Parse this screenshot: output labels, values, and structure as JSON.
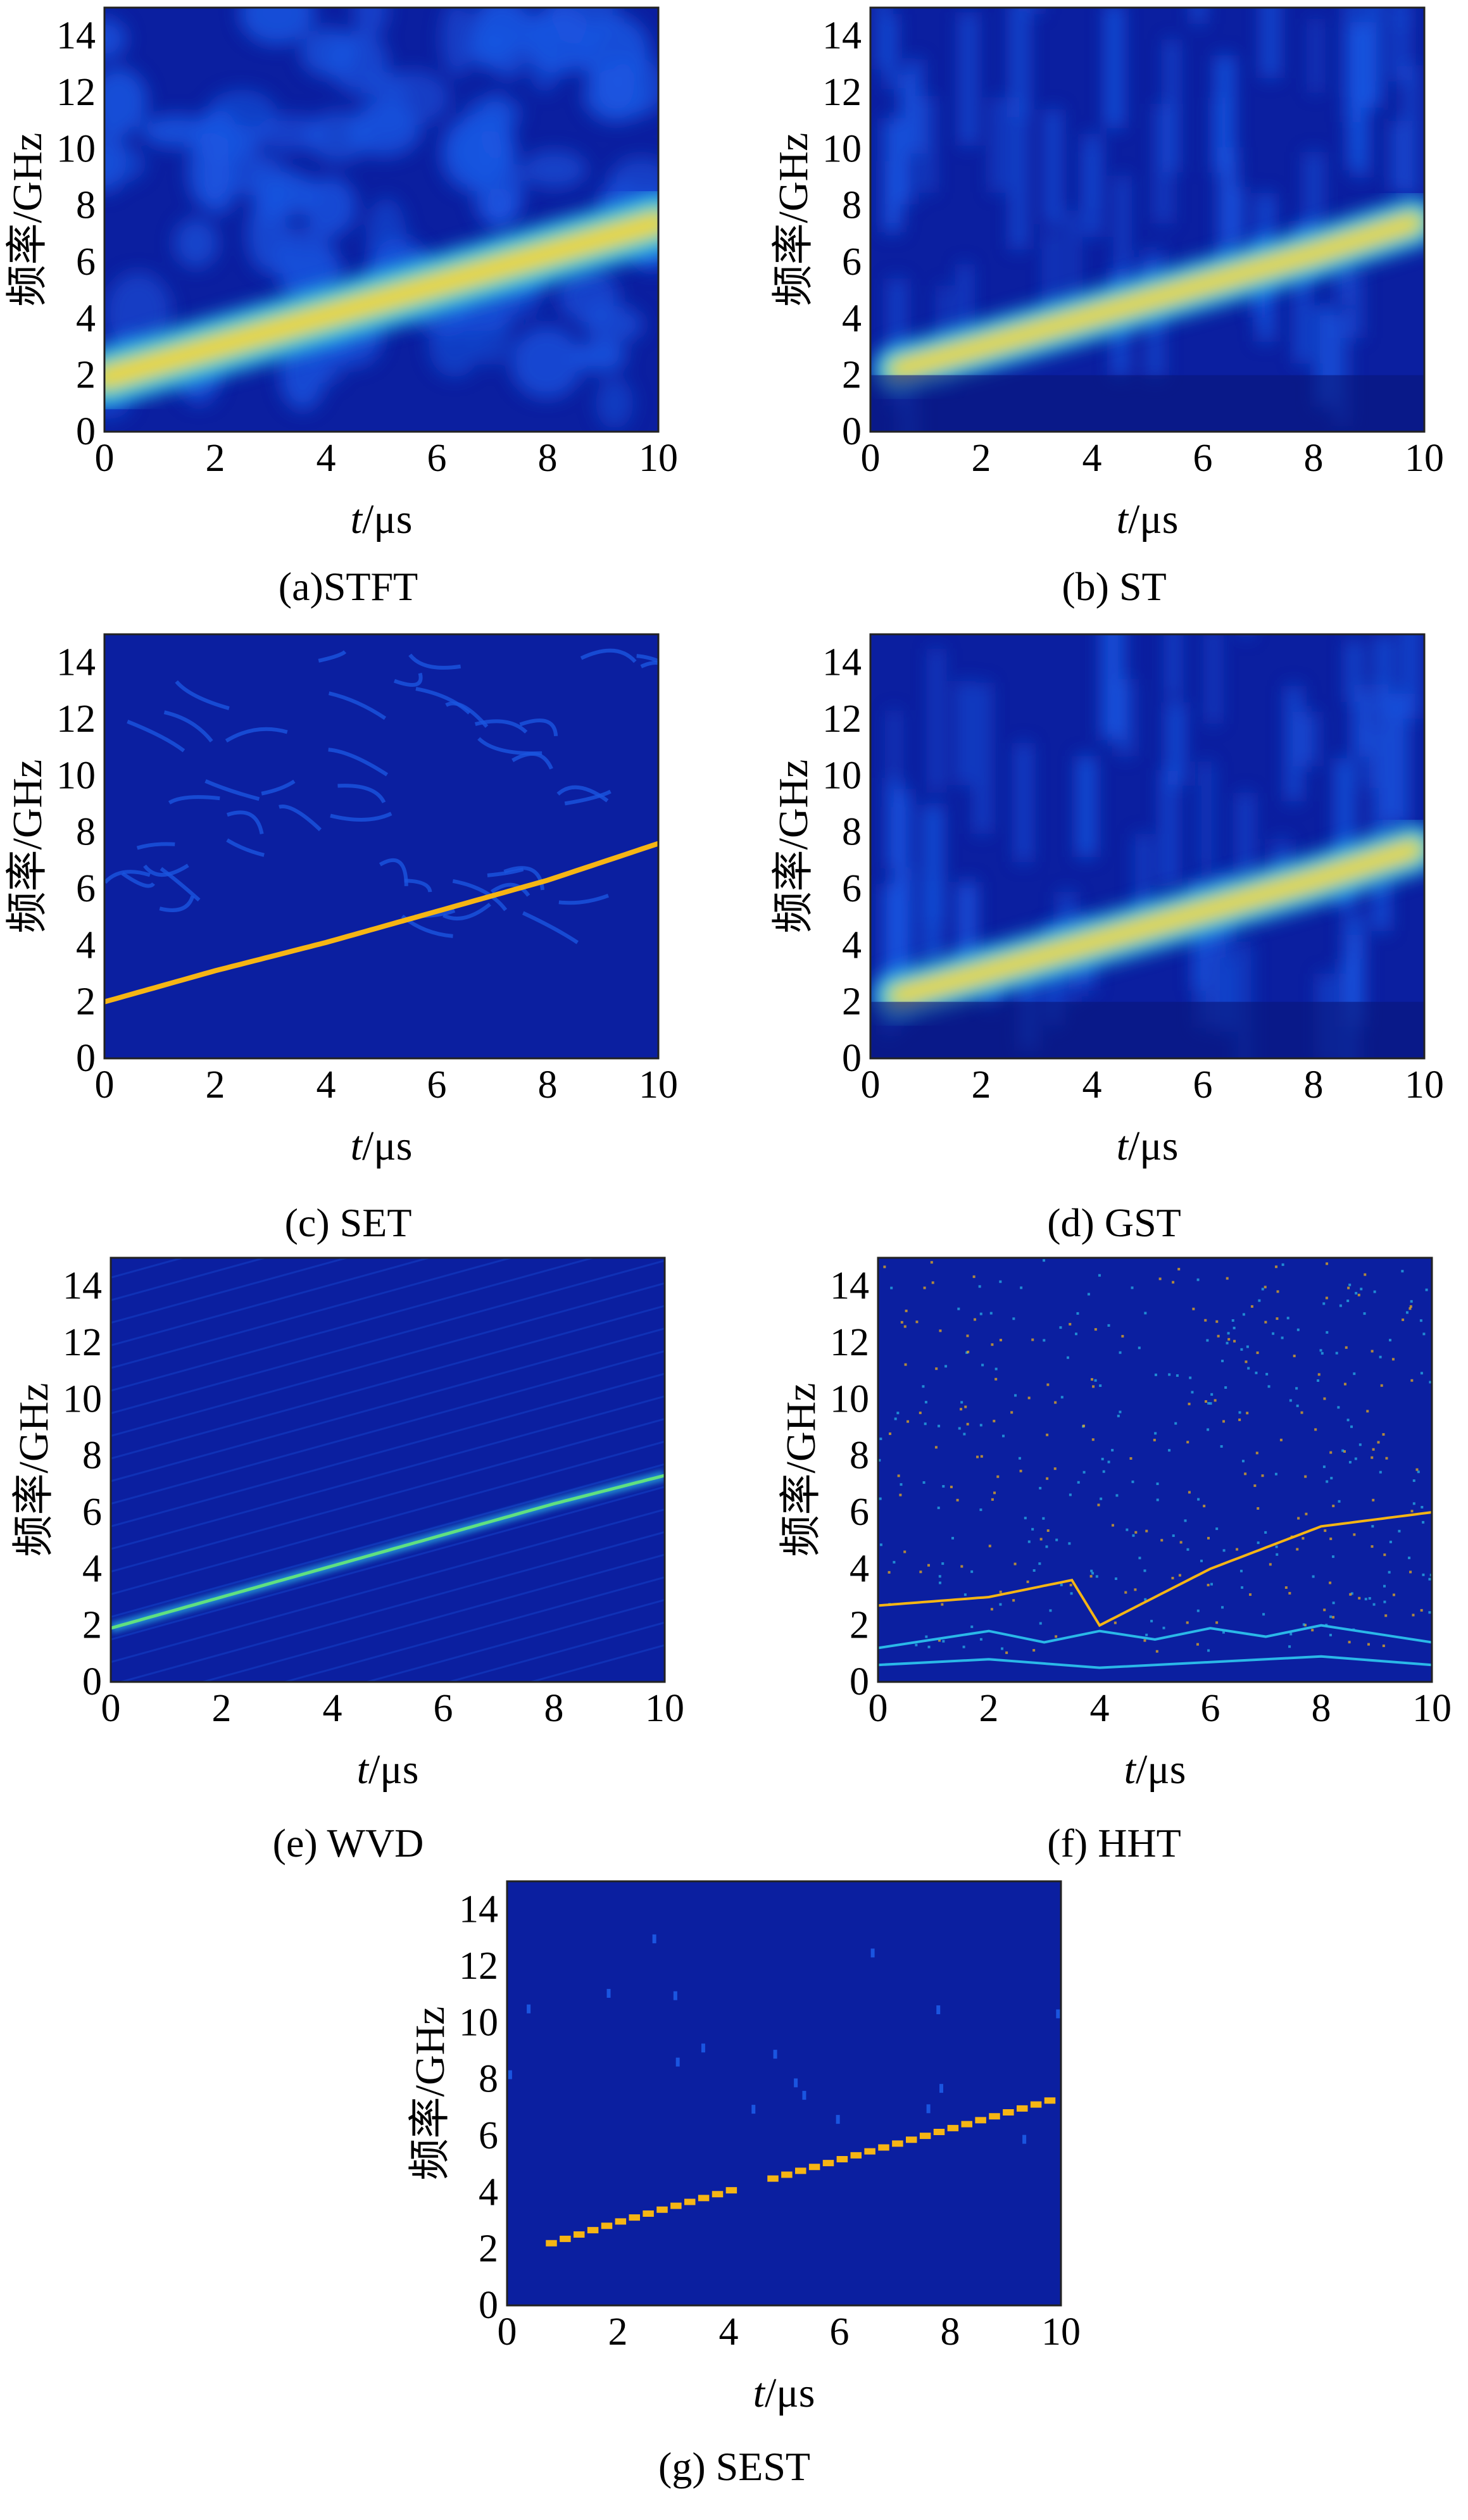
{
  "colors": {
    "background": "#0b1fa0",
    "texture": "#1a55e0",
    "cyan": "#2ab8e8",
    "green": "#60e080",
    "yellow": "#ffd21a",
    "ridge": "#f6b514"
  },
  "chart_data": [
    {
      "type": "heatmap",
      "caption": "(a)STFT",
      "style": "blur",
      "xlabel_italic": "t",
      "xlabel_rest": "/μs",
      "ylabel": "频率/GHz",
      "xlim": [
        0,
        10
      ],
      "ylim": [
        0,
        15
      ],
      "x_ticks": [
        "0",
        "2",
        "4",
        "6",
        "8",
        "10"
      ],
      "y_ticks": [
        "0",
        "2",
        "4",
        "6",
        "8",
        "10",
        "12",
        "14"
      ],
      "ridge": {
        "x": [
          0,
          2,
          4,
          6,
          8,
          10
        ],
        "y": [
          1.9,
          3.0,
          4.1,
          5.2,
          6.3,
          7.4
        ]
      }
    },
    {
      "type": "heatmap",
      "caption": "(b) ST",
      "style": "chirp",
      "xlabel_italic": "t",
      "xlabel_rest": "/μs",
      "ylabel": "频率/GHz",
      "xlim": [
        0,
        10
      ],
      "ylim": [
        0,
        15
      ],
      "x_ticks": [
        "0",
        "2",
        "4",
        "6",
        "8",
        "10"
      ],
      "y_ticks": [
        "0",
        "2",
        "4",
        "6",
        "8",
        "10",
        "12",
        "14"
      ],
      "ridge": {
        "x": [
          0.5,
          2,
          4,
          6,
          8,
          9.8
        ],
        "y": [
          2.2,
          3.0,
          4.1,
          5.2,
          6.3,
          7.4
        ]
      }
    },
    {
      "type": "heatmap",
      "caption": "(c) SET",
      "style": "steps",
      "xlabel_italic": "t",
      "xlabel_rest": "/μs",
      "ylabel": "频率/GHz",
      "xlim": [
        0,
        10
      ],
      "ylim": [
        0,
        15
      ],
      "x_ticks": [
        "0",
        "2",
        "4",
        "6",
        "8",
        "10"
      ],
      "y_ticks": [
        "0",
        "2",
        "4",
        "6",
        "8",
        "10",
        "12",
        "14"
      ],
      "ridge": {
        "x": [
          0,
          2,
          4,
          6,
          8,
          10
        ],
        "y": [
          2.0,
          3.1,
          4.1,
          5.2,
          6.3,
          7.6
        ]
      }
    },
    {
      "type": "heatmap",
      "caption": "(d) GST",
      "style": "chirp",
      "xlabel_italic": "t",
      "xlabel_rest": "/μs",
      "ylabel": "频率/GHz",
      "xlim": [
        0,
        10
      ],
      "ylim": [
        0,
        15
      ],
      "x_ticks": [
        "0",
        "2",
        "4",
        "6",
        "8",
        "10"
      ],
      "y_ticks": [
        "0",
        "2",
        "4",
        "6",
        "8",
        "10",
        "12",
        "14"
      ],
      "ridge": {
        "x": [
          0.5,
          2,
          4,
          6,
          8,
          9.8
        ],
        "y": [
          2.2,
          3.0,
          4.1,
          5.2,
          6.3,
          7.4
        ]
      }
    },
    {
      "type": "heatmap",
      "caption": "(e) WVD",
      "style": "line",
      "xlabel_italic": "t",
      "xlabel_rest": "/μs",
      "ylabel": "频率/GHz",
      "xlim": [
        0,
        10
      ],
      "ylim": [
        0,
        15
      ],
      "x_ticks": [
        "0",
        "2",
        "4",
        "6",
        "8",
        "10"
      ],
      "y_ticks": [
        "0",
        "2",
        "4",
        "6",
        "8",
        "10",
        "12",
        "14"
      ],
      "ridge": {
        "x": [
          0,
          2,
          4,
          6,
          8,
          10
        ],
        "y": [
          1.9,
          3.0,
          4.1,
          5.2,
          6.3,
          7.3
        ]
      }
    },
    {
      "type": "heatmap",
      "caption": "(f) HHT",
      "style": "scatter",
      "xlabel_italic": "t",
      "xlabel_rest": "/μs",
      "ylabel": "频率/GHz",
      "xlim": [
        0,
        10
      ],
      "ylim": [
        0,
        15
      ],
      "x_ticks": [
        "0",
        "2",
        "4",
        "6",
        "8",
        "10"
      ],
      "y_ticks": [
        "0",
        "2",
        "4",
        "6",
        "8",
        "10",
        "12",
        "14"
      ],
      "ridge": {
        "x": [
          0,
          2,
          3.5,
          4,
          6,
          8,
          10
        ],
        "y": [
          2.7,
          3.0,
          3.6,
          2.0,
          4.0,
          5.5,
          6.0
        ]
      }
    },
    {
      "type": "heatmap",
      "caption": "(g) SEST",
      "style": "segments",
      "xlabel_italic": "t",
      "xlabel_rest": "/μs",
      "ylabel": "频率/GHz",
      "xlim": [
        0,
        10
      ],
      "ylim": [
        0,
        15
      ],
      "x_ticks": [
        "0",
        "2",
        "4",
        "6",
        "8",
        "10"
      ],
      "y_ticks": [
        "0",
        "2",
        "4",
        "6",
        "8",
        "10",
        "12",
        "14"
      ],
      "ridge": {
        "x": [
          0.7,
          2,
          4,
          6,
          8,
          9.8
        ],
        "y": [
          2.2,
          3.0,
          4.1,
          5.2,
          6.3,
          7.3
        ]
      }
    }
  ]
}
